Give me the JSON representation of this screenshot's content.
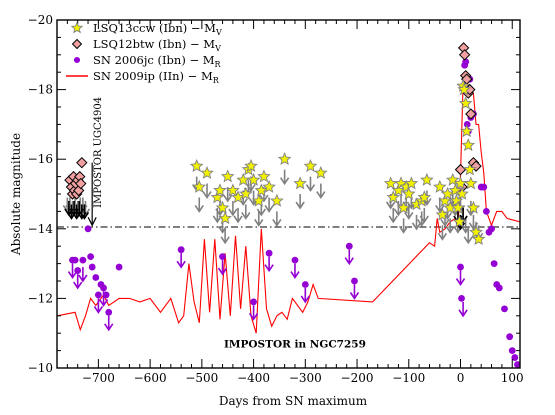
{
  "chart_data": {
    "type": "scatter",
    "title": "",
    "xlabel": "Days from SN maximum",
    "ylabel": "Absolute magnitude",
    "xlim": [
      -780,
      115
    ],
    "ylim": [
      -10,
      -20
    ],
    "y_inverted": true,
    "grid": false,
    "legend_placement": "top-left",
    "x_ticks": [
      "-700",
      "-600",
      "-500",
      "-400",
      "-300",
      "-200",
      "-100",
      "0",
      "100"
    ],
    "y_ticks": [
      "-20",
      "-18",
      "-16",
      "-14",
      "-12",
      "-10"
    ],
    "legend": [
      {
        "label": "LSQ13ccw (Ibn) − M",
        "sub": "V",
        "marker": "star",
        "color": "#f2f200",
        "text_color": "#808080"
      },
      {
        "label": "LSQ12btw (Ibn) − M",
        "sub": "V",
        "marker": "diamond",
        "color": "#f0a0a0",
        "text_color": "#000000"
      },
      {
        "label": "SN 2006jc (Ibn) − M",
        "sub": "R",
        "marker": "circle",
        "color": "#9400d3",
        "text_color": "#9400d3"
      },
      {
        "label": "SN 2009ip (IIn) − M",
        "sub": "R",
        "marker": "line",
        "color": "#ff0000",
        "text_color": "#ff0000"
      }
    ],
    "annotations": [
      {
        "text": "IMPOSTOR UGC4904",
        "x": -712,
        "y": -15.7,
        "color": "#000000"
      },
      {
        "text": "IMPOSTOR in NGC7259",
        "x": -320,
        "y": -10.7,
        "color": "#ff0000"
      }
    ],
    "reference_line": {
      "y": -14.05,
      "style": "dash-dot"
    },
    "series": [
      {
        "name": "SN 2009ip (IIn) − Mᵣ",
        "kind": "line",
        "color": "#ff0000",
        "x": [
          -780,
          -745,
          -735,
          -725,
          -715,
          -705,
          -690,
          -680,
          -660,
          -640,
          -620,
          -600,
          -580,
          -560,
          -545,
          -535,
          -525,
          -515,
          -505,
          -495,
          -485,
          -475,
          -465,
          -455,
          -445,
          -435,
          -425,
          -415,
          -405,
          -395,
          -385,
          -375,
          -365,
          -355,
          -345,
          -335,
          -325,
          -315,
          -305,
          -295,
          -285,
          -275,
          -170,
          -60,
          -50,
          -45,
          -40,
          -30,
          -20,
          -10,
          -5,
          0,
          5,
          10,
          15,
          20,
          25,
          30,
          35,
          40,
          45,
          50,
          60,
          70,
          80,
          90,
          115
        ],
        "y": [
          -11.5,
          -11.6,
          -11.1,
          -11.5,
          -12.0,
          -11.8,
          -12.1,
          -11.8,
          -12.0,
          -12.0,
          -11.9,
          -12.0,
          -11.6,
          -12.0,
          -11.3,
          -11.5,
          -13.0,
          -11.9,
          -11.3,
          -13.7,
          -11.6,
          -13.7,
          -11.4,
          -13.3,
          -11.5,
          -13.8,
          -11.7,
          -13.5,
          -11.5,
          -11.0,
          -14.0,
          -11.7,
          -11.2,
          -11.5,
          -11.6,
          -11.4,
          -12.0,
          -11.8,
          -11.6,
          -11.9,
          -12.4,
          -12.0,
          -11.9,
          -13.6,
          -13.5,
          -14.3,
          -13.9,
          -14.0,
          -14.2,
          -14.3,
          -14.0,
          -15.5,
          -18.2,
          -18.3,
          -18.1,
          -17.9,
          -17.9,
          -17.0,
          -17.0,
          -16.2,
          -15.6,
          -14.5,
          -14.1,
          -14.5,
          -14.5,
          -14.3,
          -14.2
        ]
      },
      {
        "name": "SN 2006jc (Ibn) − Mᵣ",
        "kind": "circle",
        "color": "#9400d3",
        "x": [
          -750,
          -745,
          -740,
          -730,
          -720,
          -715,
          -712,
          -705,
          -700,
          -695,
          -690,
          -685,
          -680,
          -660,
          -540,
          -460,
          -400,
          -370,
          -320,
          -300,
          -215,
          -205,
          0,
          2,
          5,
          8,
          10,
          13,
          15,
          18,
          20,
          25,
          30,
          40,
          45,
          50,
          55,
          60,
          65,
          70,
          75,
          85,
          95,
          100,
          105,
          110
        ],
        "y": [
          -13.1,
          -13.1,
          -12.8,
          -13.1,
          -14.0,
          -13.2,
          -12.9,
          -12.6,
          -12.1,
          -12.4,
          -12.3,
          -12.1,
          -11.6,
          -12.9,
          -13.4,
          -13.2,
          -11.9,
          -13.3,
          -13.1,
          -12.4,
          -13.5,
          -12.5,
          -12.9,
          -12.0,
          -18.1,
          -18.7,
          -18.8,
          -17.0,
          -16.8,
          -18.3,
          -17.2,
          -17.3,
          -15.8,
          -15.2,
          -15.2,
          -14.5,
          -13.9,
          -14.0,
          -13.0,
          -12.4,
          -12.3,
          -11.7,
          -10.9,
          -10.5,
          -10.3,
          -10.1
        ]
      },
      {
        "name": "LSQ12btw (Ibn) − Mᵥ",
        "kind": "diamond",
        "color": "#f0a0a0",
        "x": [
          -755,
          -752,
          -750,
          -748,
          -746,
          -744,
          -742,
          -740,
          -738,
          -736,
          -734,
          -732,
          0,
          3,
          6,
          8,
          10,
          12,
          15,
          18,
          20,
          25,
          30
        ],
        "y": [
          -15.4,
          -15.2,
          -15.0,
          -15.5,
          -15.1,
          -15.3,
          -15.0,
          -15.4,
          -15.1,
          -15.5,
          -15.3,
          -15.9,
          -15.7,
          -15.2,
          -19.2,
          -19.0,
          -18.4,
          -18.3,
          -17.9,
          -18.0,
          -17.3,
          -15.9,
          -15.8
        ]
      },
      {
        "name": "LSQ13ccw (Ibn) − Mᵥ",
        "kind": "star",
        "color": "#f2f200",
        "x": [
          -510,
          -505,
          -490,
          -470,
          -465,
          -460,
          -455,
          -450,
          -440,
          -430,
          -420,
          -415,
          -410,
          -405,
          -400,
          -390,
          -385,
          -380,
          -370,
          -355,
          -340,
          -310,
          -290,
          -270,
          -135,
          -130,
          -120,
          -115,
          -110,
          -105,
          -100,
          -95,
          -85,
          -75,
          -70,
          -65,
          -40,
          -35,
          -30,
          -25,
          -20,
          -15,
          -10,
          -8,
          -5,
          -2,
          0,
          3,
          5,
          7,
          10,
          12,
          15,
          18,
          20,
          25,
          30,
          35
        ],
        "y": [
          -15.8,
          -15.2,
          -15.6,
          -14.9,
          -15.1,
          -14.6,
          -14.3,
          -15.5,
          -15.1,
          -14.9,
          -15.4,
          -15.0,
          -15.7,
          -15.8,
          -15.4,
          -14.8,
          -15.1,
          -15.5,
          -15.2,
          -14.8,
          -16.0,
          -15.3,
          -15.8,
          -15.6,
          -15.3,
          -14.9,
          -15.1,
          -15.3,
          -14.6,
          -15.2,
          -15.0,
          -15.3,
          -14.7,
          -14.8,
          -14.9,
          -15.4,
          -15.2,
          -14.4,
          -14.8,
          -15.0,
          -14.6,
          -15.4,
          -15.1,
          -14.8,
          -14.6,
          -14.2,
          -15.3,
          -15.0,
          -18.1,
          -18.0,
          -17.6,
          -16.8,
          -16.4,
          -15.7,
          -15.3,
          -14.6,
          -13.9,
          -13.7
        ]
      }
    ],
    "upper_limits": {
      "gray": {
        "color": "#808080",
        "x": [
          -760,
          -755,
          -750,
          -745,
          -740,
          -735,
          -730,
          -725,
          -510,
          -505,
          -490,
          -470,
          -465,
          -460,
          -455,
          -450,
          -440,
          -430,
          -420,
          -415,
          -410,
          -405,
          -400,
          -390,
          -385,
          -380,
          -370,
          -355,
          -340,
          -310,
          -290,
          -270,
          -135,
          -130,
          -120,
          -115,
          -110,
          -105,
          -100,
          -95,
          -85,
          -75,
          -70,
          -65,
          -40,
          -35,
          -30,
          -25,
          -20,
          -15,
          -10,
          -5,
          0,
          5,
          10,
          15,
          20,
          25,
          30,
          35
        ],
        "y": [
          -14.9,
          -14.9,
          -14.8,
          -14.9,
          -14.8,
          -14.9,
          -14.9,
          -14.8,
          -15.5,
          -14.9,
          -15.3,
          -14.6,
          -14.8,
          -14.3,
          -14.0,
          -15.2,
          -14.8,
          -14.6,
          -15.1,
          -14.7,
          -15.4,
          -15.5,
          -15.1,
          -14.5,
          -14.8,
          -15.2,
          -14.9,
          -14.5,
          -15.7,
          -15.0,
          -15.5,
          -15.3,
          -15.0,
          -14.6,
          -14.8,
          -15.0,
          -14.3,
          -14.9,
          -14.7,
          -15.0,
          -14.4,
          -14.5,
          -14.6,
          -15.1,
          -14.9,
          -14.1,
          -14.5,
          -14.7,
          -14.3,
          -15.1,
          -14.8,
          -14.3,
          -14.9,
          -14.6,
          -14.3,
          -14.0,
          -14.8,
          -14.4,
          -14.2,
          -14.1
        ]
      },
      "black": {
        "color": "#000000",
        "x": [
          -757,
          -752,
          -747,
          -742,
          -737,
          -732,
          -727,
          -5,
          0,
          5
        ],
        "y": [
          -14.8,
          -14.7,
          -14.8,
          -14.7,
          -14.8,
          -14.7,
          -14.7,
          -14.6,
          -14.4,
          -14.6
        ]
      },
      "purple": {
        "color": "#9400d3",
        "x": [
          -750,
          -740,
          -730,
          -700,
          -690,
          -680,
          -540,
          -460,
          -400,
          -370,
          -320,
          -300,
          -215,
          -205,
          0,
          5
        ],
        "y": [
          -13.0,
          -12.7,
          -12.9,
          -12.0,
          -12.2,
          -11.5,
          -13.3,
          -13.1,
          -11.8,
          -13.2,
          -13.0,
          -12.3,
          -13.4,
          -12.4,
          -12.8,
          -11.9
        ]
      }
    }
  }
}
